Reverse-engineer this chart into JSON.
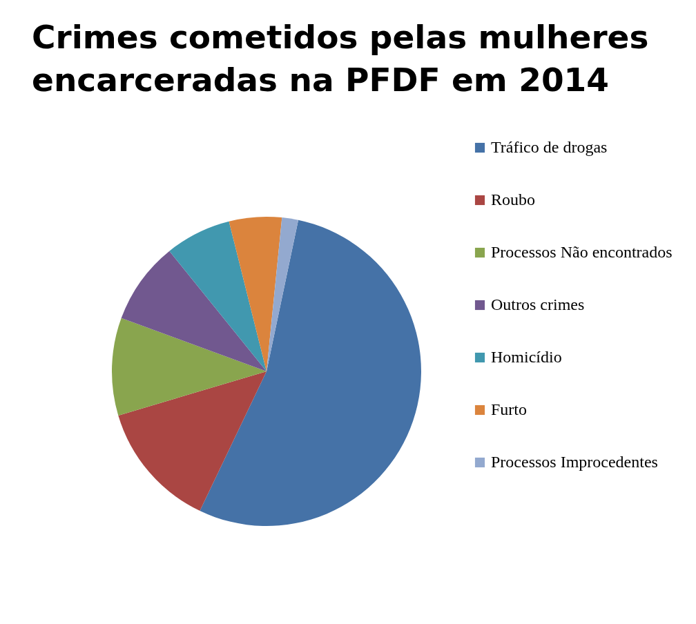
{
  "chart_data": {
    "type": "pie",
    "title": "Crimes cometidos pelas mulheres encarceradas na PFDF em 2014",
    "categories": [
      "Tráfico de drogas",
      "Roubo",
      "Processos Não encontrados",
      "Outros crimes",
      "Homicídio",
      "Furto",
      "Processos Improcedentes"
    ],
    "values": [
      53.8,
      13.3,
      10.2,
      8.6,
      6.9,
      5.5,
      1.7
    ],
    "colors": [
      "#4572a7",
      "#aa4643",
      "#89a54e",
      "#71588f",
      "#4198af",
      "#db843d",
      "#93a9cf"
    ],
    "legend": "right"
  }
}
